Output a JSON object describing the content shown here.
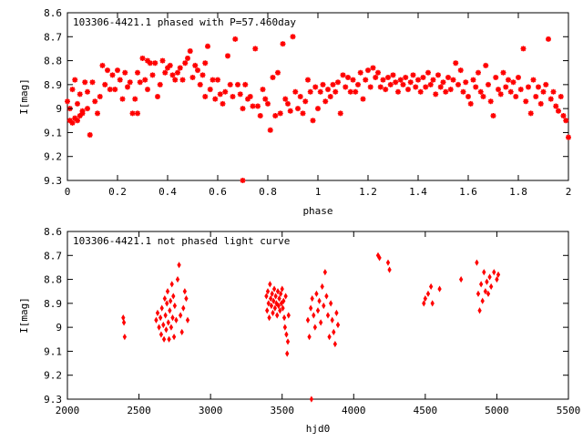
{
  "colors": {
    "points": "#ff0000",
    "axes": "#000000",
    "background": "#ffffff"
  },
  "chart_data": [
    {
      "type": "scatter",
      "title": "103306-4421.1 phased with P=57.460day",
      "xlabel": "phase",
      "ylabel": "I[mag]",
      "xlim": [
        0,
        2
      ],
      "ylim": [
        8.6,
        9.3
      ],
      "y_inverted": true,
      "grid": false,
      "x_ticks": [
        "0",
        "0.2",
        "0.4",
        "0.6",
        "0.8",
        "1",
        "1.2",
        "1.4",
        "1.6",
        "1.8",
        "2"
      ],
      "y_ticks": [
        "8.6",
        "8.7",
        "8.8",
        "8.9",
        "9",
        "9.1",
        "9.2",
        "9.3"
      ],
      "points": [
        [
          0.0,
          8.97
        ],
        [
          0.01,
          9.05
        ],
        [
          0.01,
          9.0
        ],
        [
          0.02,
          9.06
        ],
        [
          0.02,
          8.92
        ],
        [
          0.03,
          9.04
        ],
        [
          0.03,
          8.88
        ],
        [
          0.04,
          9.05
        ],
        [
          0.04,
          8.98
        ],
        [
          0.05,
          9.03
        ],
        [
          0.05,
          8.94
        ],
        [
          0.06,
          9.02
        ],
        [
          0.06,
          9.01
        ],
        [
          0.07,
          8.89
        ],
        [
          0.08,
          9.0
        ],
        [
          0.08,
          8.93
        ],
        [
          0.09,
          9.11
        ],
        [
          0.1,
          8.89
        ],
        [
          0.11,
          8.97
        ],
        [
          0.12,
          9.02
        ],
        [
          0.13,
          8.95
        ],
        [
          0.14,
          8.82
        ],
        [
          0.15,
          8.9
        ],
        [
          0.16,
          8.84
        ],
        [
          0.17,
          8.92
        ],
        [
          0.18,
          8.86
        ],
        [
          0.19,
          8.92
        ],
        [
          0.2,
          8.84
        ],
        [
          0.21,
          8.88
        ],
        [
          0.22,
          8.96
        ],
        [
          0.23,
          8.85
        ],
        [
          0.24,
          8.91
        ],
        [
          0.25,
          8.89
        ],
        [
          0.26,
          9.02
        ],
        [
          0.27,
          8.96
        ],
        [
          0.28,
          9.02
        ],
        [
          0.28,
          8.85
        ],
        [
          0.29,
          8.89
        ],
        [
          0.3,
          8.79
        ],
        [
          0.31,
          8.88
        ],
        [
          0.32,
          8.8
        ],
        [
          0.32,
          8.92
        ],
        [
          0.33,
          8.81
        ],
        [
          0.34,
          8.86
        ],
        [
          0.35,
          8.81
        ],
        [
          0.36,
          8.95
        ],
        [
          0.37,
          8.9
        ],
        [
          0.38,
          8.8
        ],
        [
          0.39,
          8.85
        ],
        [
          0.4,
          8.83
        ],
        [
          0.41,
          8.82
        ],
        [
          0.42,
          8.86
        ],
        [
          0.43,
          8.88
        ],
        [
          0.44,
          8.85
        ],
        [
          0.45,
          8.83
        ],
        [
          0.46,
          8.88
        ],
        [
          0.47,
          8.81
        ],
        [
          0.48,
          8.79
        ],
        [
          0.49,
          8.76
        ],
        [
          0.5,
          8.87
        ],
        [
          0.51,
          8.82
        ],
        [
          0.52,
          8.84
        ],
        [
          0.53,
          8.9
        ],
        [
          0.54,
          8.86
        ],
        [
          0.55,
          8.81
        ],
        [
          0.55,
          8.95
        ],
        [
          0.56,
          8.74
        ],
        [
          0.57,
          8.92
        ],
        [
          0.58,
          8.88
        ],
        [
          0.59,
          8.96
        ],
        [
          0.6,
          8.88
        ],
        [
          0.61,
          8.94
        ],
        [
          0.62,
          8.98
        ],
        [
          0.63,
          8.93
        ],
        [
          0.64,
          8.78
        ],
        [
          0.65,
          8.9
        ],
        [
          0.66,
          8.95
        ],
        [
          0.67,
          8.71
        ],
        [
          0.68,
          8.9
        ],
        [
          0.69,
          8.94
        ],
        [
          0.7,
          9.3
        ],
        [
          0.7,
          9.0
        ],
        [
          0.71,
          8.9
        ],
        [
          0.72,
          8.96
        ],
        [
          0.73,
          8.95
        ],
        [
          0.74,
          8.99
        ],
        [
          0.75,
          8.75
        ],
        [
          0.76,
          8.99
        ],
        [
          0.77,
          9.03
        ],
        [
          0.78,
          8.92
        ],
        [
          0.79,
          8.96
        ],
        [
          0.8,
          8.98
        ],
        [
          0.81,
          9.09
        ],
        [
          0.82,
          8.87
        ],
        [
          0.83,
          9.03
        ],
        [
          0.84,
          8.85
        ],
        [
          0.85,
          9.02
        ],
        [
          0.86,
          8.73
        ],
        [
          0.87,
          8.96
        ],
        [
          0.88,
          8.98
        ],
        [
          0.89,
          9.01
        ],
        [
          0.9,
          8.7
        ],
        [
          0.91,
          8.93
        ],
        [
          0.92,
          9.0
        ],
        [
          0.93,
          8.95
        ],
        [
          0.94,
          9.02
        ],
        [
          0.95,
          8.97
        ],
        [
          0.96,
          8.88
        ],
        [
          0.97,
          8.93
        ],
        [
          0.98,
          9.05
        ],
        [
          0.99,
          8.91
        ],
        [
          1.0,
          9.0
        ],
        [
          1.01,
          8.93
        ],
        [
          1.02,
          8.9
        ],
        [
          1.03,
          8.97
        ],
        [
          1.04,
          8.92
        ],
        [
          1.05,
          8.95
        ],
        [
          1.06,
          8.9
        ],
        [
          1.07,
          8.93
        ],
        [
          1.08,
          8.89
        ],
        [
          1.09,
          9.02
        ],
        [
          1.1,
          8.86
        ],
        [
          1.11,
          8.91
        ],
        [
          1.12,
          8.87
        ],
        [
          1.13,
          8.93
        ],
        [
          1.14,
          8.88
        ],
        [
          1.15,
          8.93
        ],
        [
          1.16,
          8.9
        ],
        [
          1.17,
          8.85
        ],
        [
          1.18,
          8.96
        ],
        [
          1.19,
          8.88
        ],
        [
          1.2,
          8.84
        ],
        [
          1.21,
          8.91
        ],
        [
          1.22,
          8.83
        ],
        [
          1.23,
          8.87
        ],
        [
          1.24,
          8.85
        ],
        [
          1.25,
          8.91
        ],
        [
          1.26,
          8.88
        ],
        [
          1.27,
          8.92
        ],
        [
          1.28,
          8.87
        ],
        [
          1.29,
          8.9
        ],
        [
          1.3,
          8.86
        ],
        [
          1.31,
          8.89
        ],
        [
          1.32,
          8.93
        ],
        [
          1.33,
          8.88
        ],
        [
          1.34,
          8.9
        ],
        [
          1.35,
          8.87
        ],
        [
          1.36,
          8.92
        ],
        [
          1.37,
          8.89
        ],
        [
          1.38,
          8.86
        ],
        [
          1.39,
          8.91
        ],
        [
          1.4,
          8.88
        ],
        [
          1.41,
          8.93
        ],
        [
          1.42,
          8.87
        ],
        [
          1.43,
          8.91
        ],
        [
          1.44,
          8.85
        ],
        [
          1.45,
          8.9
        ],
        [
          1.46,
          8.88
        ],
        [
          1.47,
          8.94
        ],
        [
          1.48,
          8.86
        ],
        [
          1.49,
          8.91
        ],
        [
          1.5,
          8.89
        ],
        [
          1.51,
          8.93
        ],
        [
          1.52,
          8.87
        ],
        [
          1.53,
          8.92
        ],
        [
          1.54,
          8.88
        ],
        [
          1.55,
          8.81
        ],
        [
          1.56,
          8.9
        ],
        [
          1.57,
          8.84
        ],
        [
          1.58,
          8.93
        ],
        [
          1.59,
          8.89
        ],
        [
          1.6,
          8.95
        ],
        [
          1.61,
          8.98
        ],
        [
          1.62,
          8.88
        ],
        [
          1.63,
          8.91
        ],
        [
          1.64,
          8.85
        ],
        [
          1.65,
          8.93
        ],
        [
          1.66,
          8.95
        ],
        [
          1.67,
          8.82
        ],
        [
          1.68,
          8.9
        ],
        [
          1.69,
          8.97
        ],
        [
          1.7,
          9.03
        ],
        [
          1.71,
          8.87
        ],
        [
          1.72,
          8.92
        ],
        [
          1.73,
          8.94
        ],
        [
          1.74,
          8.85
        ],
        [
          1.75,
          8.91
        ],
        [
          1.76,
          8.88
        ],
        [
          1.77,
          8.93
        ],
        [
          1.78,
          8.89
        ],
        [
          1.79,
          8.95
        ],
        [
          1.8,
          8.87
        ],
        [
          1.81,
          8.92
        ],
        [
          1.82,
          8.75
        ],
        [
          1.83,
          8.97
        ],
        [
          1.84,
          8.91
        ],
        [
          1.85,
          9.02
        ],
        [
          1.86,
          8.88
        ],
        [
          1.87,
          8.95
        ],
        [
          1.88,
          8.91
        ],
        [
          1.89,
          8.98
        ],
        [
          1.9,
          8.93
        ],
        [
          1.91,
          8.9
        ],
        [
          1.92,
          8.71
        ],
        [
          1.93,
          8.96
        ],
        [
          1.94,
          8.93
        ],
        [
          1.95,
          8.99
        ],
        [
          1.96,
          9.01
        ],
        [
          1.97,
          8.95
        ],
        [
          1.98,
          9.03
        ],
        [
          1.99,
          9.05
        ],
        [
          2.0,
          9.12
        ]
      ]
    },
    {
      "type": "scatter",
      "title": "103306-4421.1 not phased light curve",
      "xlabel": "hjd0",
      "ylabel": "I[mag]",
      "xlim": [
        2000,
        5500
      ],
      "ylim": [
        8.6,
        9.3
      ],
      "y_inverted": true,
      "grid": false,
      "x_ticks": [
        "2000",
        "2500",
        "3000",
        "3500",
        "4000",
        "4500",
        "5000",
        "5500"
      ],
      "y_ticks": [
        "8.6",
        "8.7",
        "8.8",
        "8.9",
        "9",
        "9.1",
        "9.2",
        "9.3"
      ],
      "points": [
        [
          2390,
          8.96
        ],
        [
          2395,
          8.98
        ],
        [
          2400,
          9.04
        ],
        [
          2620,
          8.97
        ],
        [
          2630,
          8.94
        ],
        [
          2640,
          9.0
        ],
        [
          2650,
          8.96
        ],
        [
          2655,
          9.03
        ],
        [
          2660,
          8.92
        ],
        [
          2670,
          8.99
        ],
        [
          2675,
          9.05
        ],
        [
          2680,
          8.88
        ],
        [
          2685,
          8.95
        ],
        [
          2690,
          9.01
        ],
        [
          2695,
          8.9
        ],
        [
          2700,
          8.85
        ],
        [
          2705,
          8.98
        ],
        [
          2710,
          9.05
        ],
        [
          2715,
          8.93
        ],
        [
          2720,
          8.89
        ],
        [
          2725,
          9.0
        ],
        [
          2730,
          8.82
        ],
        [
          2735,
          8.96
        ],
        [
          2740,
          8.87
        ],
        [
          2745,
          9.04
        ],
        [
          2750,
          8.91
        ],
        [
          2760,
          8.97
        ],
        [
          2770,
          8.8
        ],
        [
          2780,
          8.74
        ],
        [
          2790,
          8.95
        ],
        [
          2800,
          9.02
        ],
        [
          2810,
          8.92
        ],
        [
          2820,
          8.85
        ],
        [
          2830,
          8.88
        ],
        [
          2840,
          8.97
        ],
        [
          3390,
          8.87
        ],
        [
          3395,
          8.93
        ],
        [
          3400,
          8.85
        ],
        [
          3405,
          8.9
        ],
        [
          3410,
          8.96
        ],
        [
          3415,
          8.82
        ],
        [
          3420,
          8.88
        ],
        [
          3425,
          8.91
        ],
        [
          3430,
          8.86
        ],
        [
          3435,
          8.94
        ],
        [
          3440,
          8.89
        ],
        [
          3445,
          8.84
        ],
        [
          3450,
          8.92
        ],
        [
          3455,
          8.87
        ],
        [
          3460,
          8.9
        ],
        [
          3465,
          8.95
        ],
        [
          3470,
          8.85
        ],
        [
          3475,
          8.91
        ],
        [
          3480,
          8.88
        ],
        [
          3485,
          8.93
        ],
        [
          3490,
          8.86
        ],
        [
          3495,
          8.9
        ],
        [
          3500,
          8.84
        ],
        [
          3505,
          8.92
        ],
        [
          3510,
          8.89
        ],
        [
          3515,
          8.96
        ],
        [
          3520,
          9.0
        ],
        [
          3525,
          8.87
        ],
        [
          3530,
          9.03
        ],
        [
          3535,
          9.11
        ],
        [
          3540,
          9.06
        ],
        [
          3545,
          8.95
        ],
        [
          3680,
          8.97
        ],
        [
          3690,
          9.04
        ],
        [
          3700,
          8.92
        ],
        [
          3705,
          9.3
        ],
        [
          3710,
          8.88
        ],
        [
          3720,
          8.95
        ],
        [
          3730,
          9.0
        ],
        [
          3740,
          8.86
        ],
        [
          3750,
          8.93
        ],
        [
          3760,
          8.89
        ],
        [
          3770,
          8.98
        ],
        [
          3780,
          8.83
        ],
        [
          3790,
          8.91
        ],
        [
          3800,
          8.77
        ],
        [
          3810,
          8.87
        ],
        [
          3820,
          8.95
        ],
        [
          3830,
          9.04
        ],
        [
          3840,
          8.9
        ],
        [
          3850,
          8.97
        ],
        [
          3860,
          9.02
        ],
        [
          3870,
          9.07
        ],
        [
          3880,
          8.94
        ],
        [
          3890,
          8.99
        ],
        [
          4170,
          8.7
        ],
        [
          4180,
          8.71
        ],
        [
          4240,
          8.73
        ],
        [
          4250,
          8.76
        ],
        [
          4490,
          8.9
        ],
        [
          4500,
          8.88
        ],
        [
          4520,
          8.86
        ],
        [
          4540,
          8.83
        ],
        [
          4550,
          8.9
        ],
        [
          4600,
          8.84
        ],
        [
          4750,
          8.8
        ],
        [
          4860,
          8.73
        ],
        [
          4870,
          8.86
        ],
        [
          4880,
          8.93
        ],
        [
          4890,
          8.82
        ],
        [
          4900,
          8.89
        ],
        [
          4910,
          8.77
        ],
        [
          4920,
          8.85
        ],
        [
          4930,
          8.81
        ],
        [
          4940,
          8.86
        ],
        [
          4950,
          8.79
        ],
        [
          4960,
          8.83
        ],
        [
          4980,
          8.77
        ],
        [
          5000,
          8.8
        ],
        [
          5010,
          8.78
        ]
      ]
    }
  ]
}
